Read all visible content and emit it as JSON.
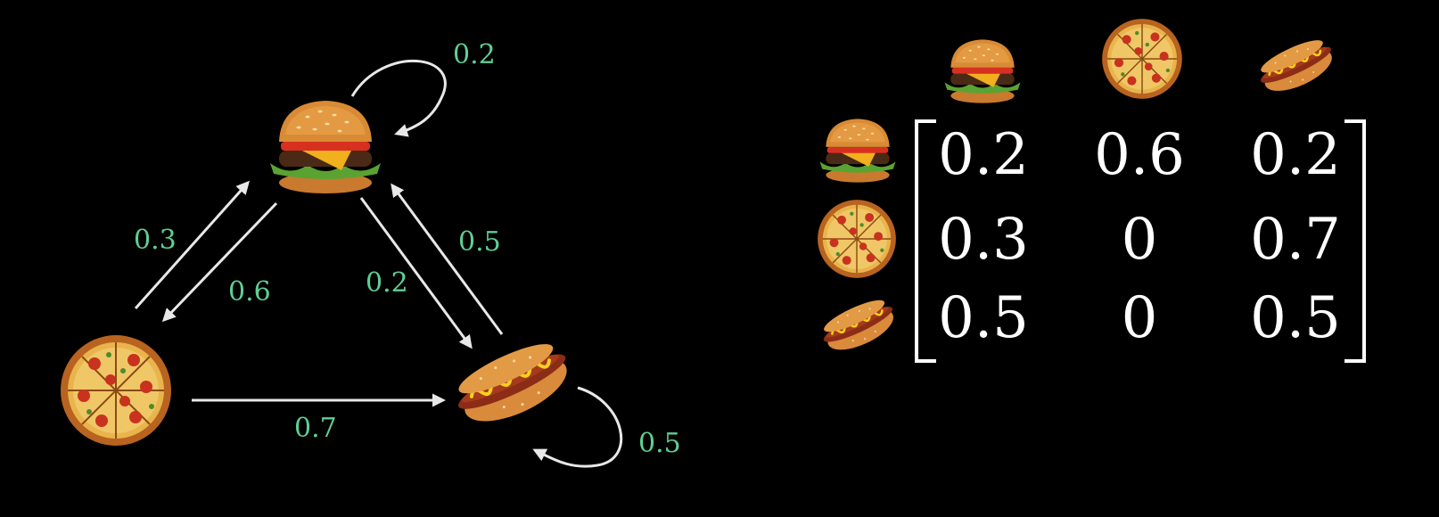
{
  "graph": {
    "nodes": [
      {
        "id": "burger",
        "icon": "hamburger-icon"
      },
      {
        "id": "pizza",
        "icon": "pizza-icon"
      },
      {
        "id": "hotdog",
        "icon": "hotdog-icon"
      }
    ],
    "edges": [
      {
        "from": "burger",
        "to": "burger",
        "label": "0.2"
      },
      {
        "from": "pizza",
        "to": "burger",
        "label": "0.3"
      },
      {
        "from": "burger",
        "to": "pizza",
        "label": "0.6"
      },
      {
        "from": "burger",
        "to": "hotdog",
        "label": "0.2"
      },
      {
        "from": "hotdog",
        "to": "burger",
        "label": "0.5"
      },
      {
        "from": "pizza",
        "to": "hotdog",
        "label": "0.7"
      },
      {
        "from": "hotdog",
        "to": "hotdog",
        "label": "0.5"
      }
    ]
  },
  "matrix": {
    "columns": [
      "hamburger-icon",
      "pizza-icon",
      "hotdog-icon"
    ],
    "rows": [
      "hamburger-icon",
      "pizza-icon",
      "hotdog-icon"
    ],
    "values": [
      [
        "0.2",
        "0.6",
        "0.2"
      ],
      [
        "0.3",
        "0",
        "0.7"
      ],
      [
        "0.5",
        "0",
        "0.5"
      ]
    ]
  },
  "colors": {
    "background": "#000000",
    "label": "#5fcf94",
    "arrow": "#e8e8e8",
    "matrix_text": "#ffffff"
  }
}
